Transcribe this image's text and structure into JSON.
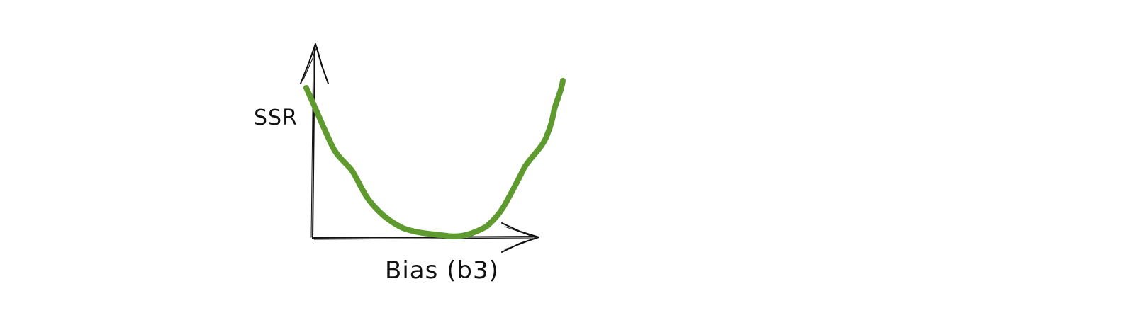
{
  "diagram": {
    "y_axis_label": "SSR",
    "x_axis_label": "Bias (b3)",
    "colors": {
      "axes": "#111111",
      "curve": "#5f9a2e",
      "background": "#ffffff"
    }
  }
}
